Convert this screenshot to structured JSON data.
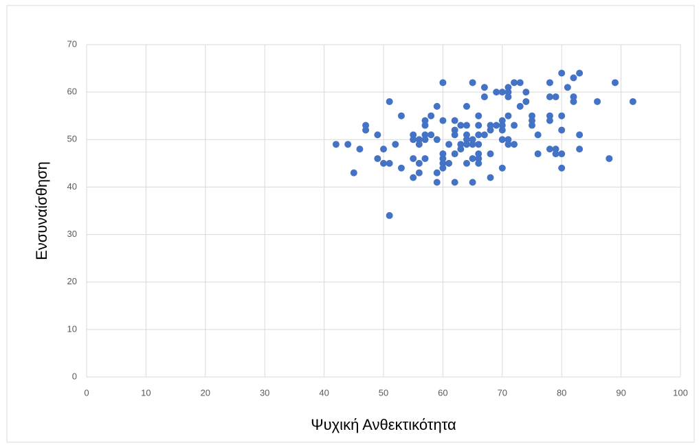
{
  "chart_data": {
    "type": "scatter",
    "x_label": "Ψυχική Ανθεκτικότητα",
    "y_label": "Ενσυναίσθηση",
    "xlim": [
      0,
      100
    ],
    "xticks": [
      0,
      10,
      20,
      30,
      40,
      50,
      60,
      70,
      80,
      90,
      100
    ],
    "ylim": [
      0,
      70
    ],
    "yticks": [
      0,
      10,
      20,
      30,
      40,
      50,
      60,
      70
    ],
    "grid": true,
    "series": [
      {
        "color": "#4472c4",
        "x": [
          42,
          44,
          45,
          46,
          47,
          47,
          49,
          49,
          50,
          50,
          51,
          51,
          51,
          52,
          53,
          53,
          55,
          55,
          55,
          55,
          56,
          56,
          56,
          56,
          57,
          57,
          57,
          57,
          57,
          58,
          58,
          59,
          59,
          59,
          59,
          60,
          60,
          60,
          60,
          60,
          60,
          61,
          61,
          62,
          62,
          62,
          62,
          62,
          63,
          63,
          63,
          64,
          64,
          64,
          64,
          64,
          64,
          65,
          65,
          65,
          65,
          65,
          66,
          66,
          66,
          66,
          66,
          66,
          66,
          67,
          67,
          67,
          68,
          68,
          68,
          68,
          69,
          69,
          70,
          70,
          70,
          70,
          70,
          70,
          71,
          71,
          71,
          71,
          71,
          71,
          72,
          72,
          72,
          73,
          73,
          74,
          74,
          75,
          75,
          75,
          76,
          76,
          78,
          78,
          78,
          78,
          78,
          79,
          79,
          79,
          80,
          80,
          80,
          80,
          80,
          81,
          82,
          82,
          82,
          83,
          83,
          83,
          86,
          88,
          89,
          92
        ],
        "values": [
          49,
          49,
          43,
          48,
          53,
          52,
          51,
          46,
          48,
          45,
          58,
          45,
          34,
          49,
          55,
          44,
          51,
          50,
          46,
          42,
          50,
          49,
          45,
          43,
          54,
          53,
          51,
          50,
          46,
          55,
          51,
          57,
          50,
          43,
          41,
          62,
          54,
          47,
          46,
          45,
          44,
          49,
          45,
          54,
          52,
          51,
          47,
          41,
          53,
          49,
          48,
          57,
          53,
          51,
          50,
          49,
          45,
          62,
          50,
          49,
          46,
          41,
          55,
          53,
          51,
          49,
          47,
          46,
          45,
          61,
          59,
          51,
          53,
          52,
          47,
          42,
          60,
          53,
          60,
          54,
          53,
          52,
          50,
          44,
          61,
          60,
          59,
          55,
          50,
          49,
          62,
          53,
          49,
          62,
          57,
          60,
          58,
          55,
          54,
          53,
          51,
          47,
          62,
          59,
          55,
          54,
          48,
          59,
          48,
          47,
          64,
          55,
          52,
          47,
          44,
          61,
          63,
          59,
          58,
          64,
          51,
          48,
          58,
          46,
          62,
          58
        ]
      }
    ]
  }
}
